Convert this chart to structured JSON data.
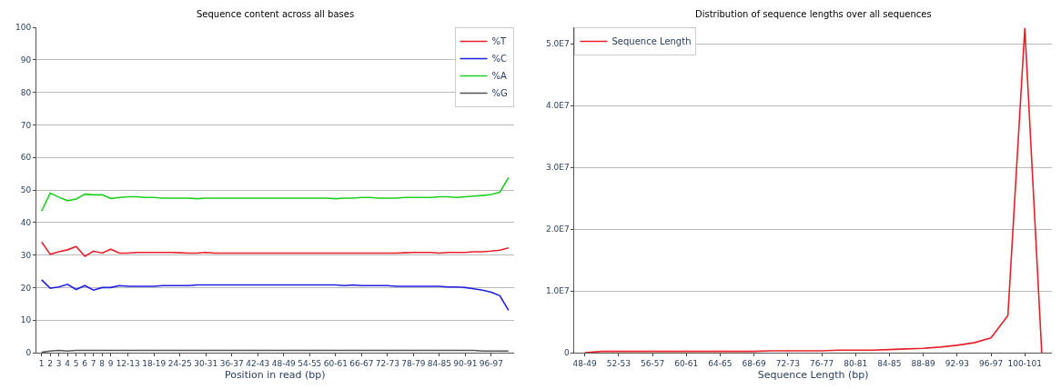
{
  "chart_data": [
    {
      "type": "line",
      "title": "Sequence content across all bases",
      "xlabel": "Position in read (bp)",
      "categories": [
        "1",
        "2",
        "3",
        "4",
        "5",
        "6",
        "7",
        "8",
        "9",
        null,
        "12-13",
        null,
        null,
        "18-19",
        null,
        null,
        "24-25",
        null,
        null,
        "30-31",
        null,
        null,
        "36-37",
        null,
        null,
        "42-43",
        null,
        null,
        "48-49",
        null,
        null,
        "54-55",
        null,
        null,
        "60-61",
        null,
        null,
        "66-67",
        null,
        null,
        "72-73",
        null,
        null,
        "78-79",
        null,
        null,
        "84-85",
        null,
        null,
        "90-91",
        null,
        null,
        "96-97",
        null,
        null
      ],
      "series": [
        {
          "name": "%T",
          "color": "#e8202a",
          "values": [
            34.0,
            30.2,
            31.0,
            31.6,
            32.6,
            29.6,
            31.2,
            30.6,
            31.8,
            30.6,
            30.6,
            30.8,
            30.8,
            30.8,
            30.8,
            30.8,
            30.7,
            30.6,
            30.6,
            30.8,
            30.6,
            30.6,
            30.6,
            30.6,
            30.6,
            30.6,
            30.6,
            30.6,
            30.6,
            30.6,
            30.6,
            30.6,
            30.6,
            30.6,
            30.6,
            30.6,
            30.6,
            30.6,
            30.6,
            30.6,
            30.6,
            30.6,
            30.7,
            30.8,
            30.8,
            30.8,
            30.6,
            30.8,
            30.8,
            30.8,
            31.0,
            31.0,
            31.2,
            31.5,
            32.2
          ]
        },
        {
          "name": "%C",
          "color": "#2020e0",
          "values": [
            22.4,
            19.8,
            20.2,
            21.0,
            19.4,
            20.6,
            19.2,
            20.0,
            20.0,
            20.6,
            20.4,
            20.4,
            20.4,
            20.4,
            20.6,
            20.6,
            20.6,
            20.6,
            20.8,
            20.8,
            20.8,
            20.8,
            20.8,
            20.8,
            20.8,
            20.8,
            20.8,
            20.8,
            20.8,
            20.8,
            20.8,
            20.8,
            20.8,
            20.8,
            20.8,
            20.6,
            20.8,
            20.6,
            20.6,
            20.6,
            20.6,
            20.4,
            20.4,
            20.4,
            20.4,
            20.4,
            20.4,
            20.2,
            20.2,
            20.0,
            19.6,
            19.2,
            18.6,
            17.5,
            13.0
          ]
        },
        {
          "name": "%A",
          "color": "#20d020",
          "values": [
            43.5,
            49.0,
            47.8,
            46.7,
            47.2,
            48.7,
            48.5,
            48.5,
            47.4,
            47.7,
            47.9,
            47.9,
            47.7,
            47.7,
            47.5,
            47.5,
            47.5,
            47.5,
            47.3,
            47.5,
            47.5,
            47.5,
            47.5,
            47.5,
            47.5,
            47.5,
            47.5,
            47.5,
            47.5,
            47.5,
            47.5,
            47.5,
            47.5,
            47.5,
            47.3,
            47.5,
            47.5,
            47.7,
            47.7,
            47.5,
            47.5,
            47.5,
            47.7,
            47.7,
            47.7,
            47.7,
            47.9,
            47.9,
            47.7,
            47.9,
            48.1,
            48.3,
            48.6,
            49.3,
            53.8
          ]
        },
        {
          "name": "%G",
          "color": "#555555",
          "values": [
            0.1,
            0.5,
            0.7,
            0.5,
            0.7,
            0.7,
            0.7,
            0.7,
            0.7,
            0.7,
            0.7,
            0.7,
            0.7,
            0.7,
            0.7,
            0.7,
            0.7,
            0.7,
            0.7,
            0.7,
            0.7,
            0.7,
            0.7,
            0.7,
            0.7,
            0.7,
            0.7,
            0.7,
            0.7,
            0.7,
            0.7,
            0.7,
            0.7,
            0.7,
            0.7,
            0.7,
            0.7,
            0.7,
            0.7,
            0.7,
            0.7,
            0.7,
            0.7,
            0.7,
            0.7,
            0.7,
            0.7,
            0.7,
            0.7,
            0.7,
            0.7,
            0.5,
            0.5,
            0.5,
            0.5
          ]
        }
      ],
      "ylim": [
        0,
        100
      ],
      "yticks": [
        0,
        10,
        20,
        30,
        40,
        50,
        60,
        70,
        80,
        90,
        100
      ],
      "grid": "y",
      "legend": "top right",
      "marker": "none",
      "line_style": "solid"
    },
    {
      "type": "line",
      "title": "Distribution of sequence lengths over all sequences",
      "xlabel": "Sequence Length (bp)",
      "categories": [
        "48-49",
        null,
        "52-53",
        null,
        "56-57",
        null,
        "60-61",
        null,
        "64-65",
        null,
        "68-69",
        null,
        "72-73",
        null,
        "76-77",
        null,
        "80-81",
        null,
        "84-85",
        null,
        "88-89",
        null,
        "92-93",
        null,
        "96-97",
        null,
        "100-101",
        null
      ],
      "series": [
        {
          "name": "Sequence Length",
          "color": "#e8202a",
          "values": [
            0,
            200000,
            200000,
            200000,
            200000,
            200000,
            200000,
            200000,
            200000,
            200000,
            200000,
            300000,
            300000,
            300000,
            300000,
            400000,
            400000,
            400000,
            500000,
            600000,
            700000,
            900000,
            1200000,
            1600000,
            2400000,
            6000000,
            52600000,
            0
          ]
        }
      ],
      "ylim": [
        0,
        52700000
      ],
      "yticks": [
        0,
        {
          "value": 10000000,
          "label": "1.0E7"
        },
        {
          "value": 20000000,
          "label": "2.0E7"
        },
        {
          "value": 30000000,
          "label": "3.0E7"
        },
        {
          "value": 40000000,
          "label": "4.0E7"
        },
        {
          "value": 50000000,
          "label": "5.0E7"
        }
      ],
      "grid": "y",
      "legend": "top left",
      "marker": "none",
      "line_style": "solid"
    }
  ]
}
